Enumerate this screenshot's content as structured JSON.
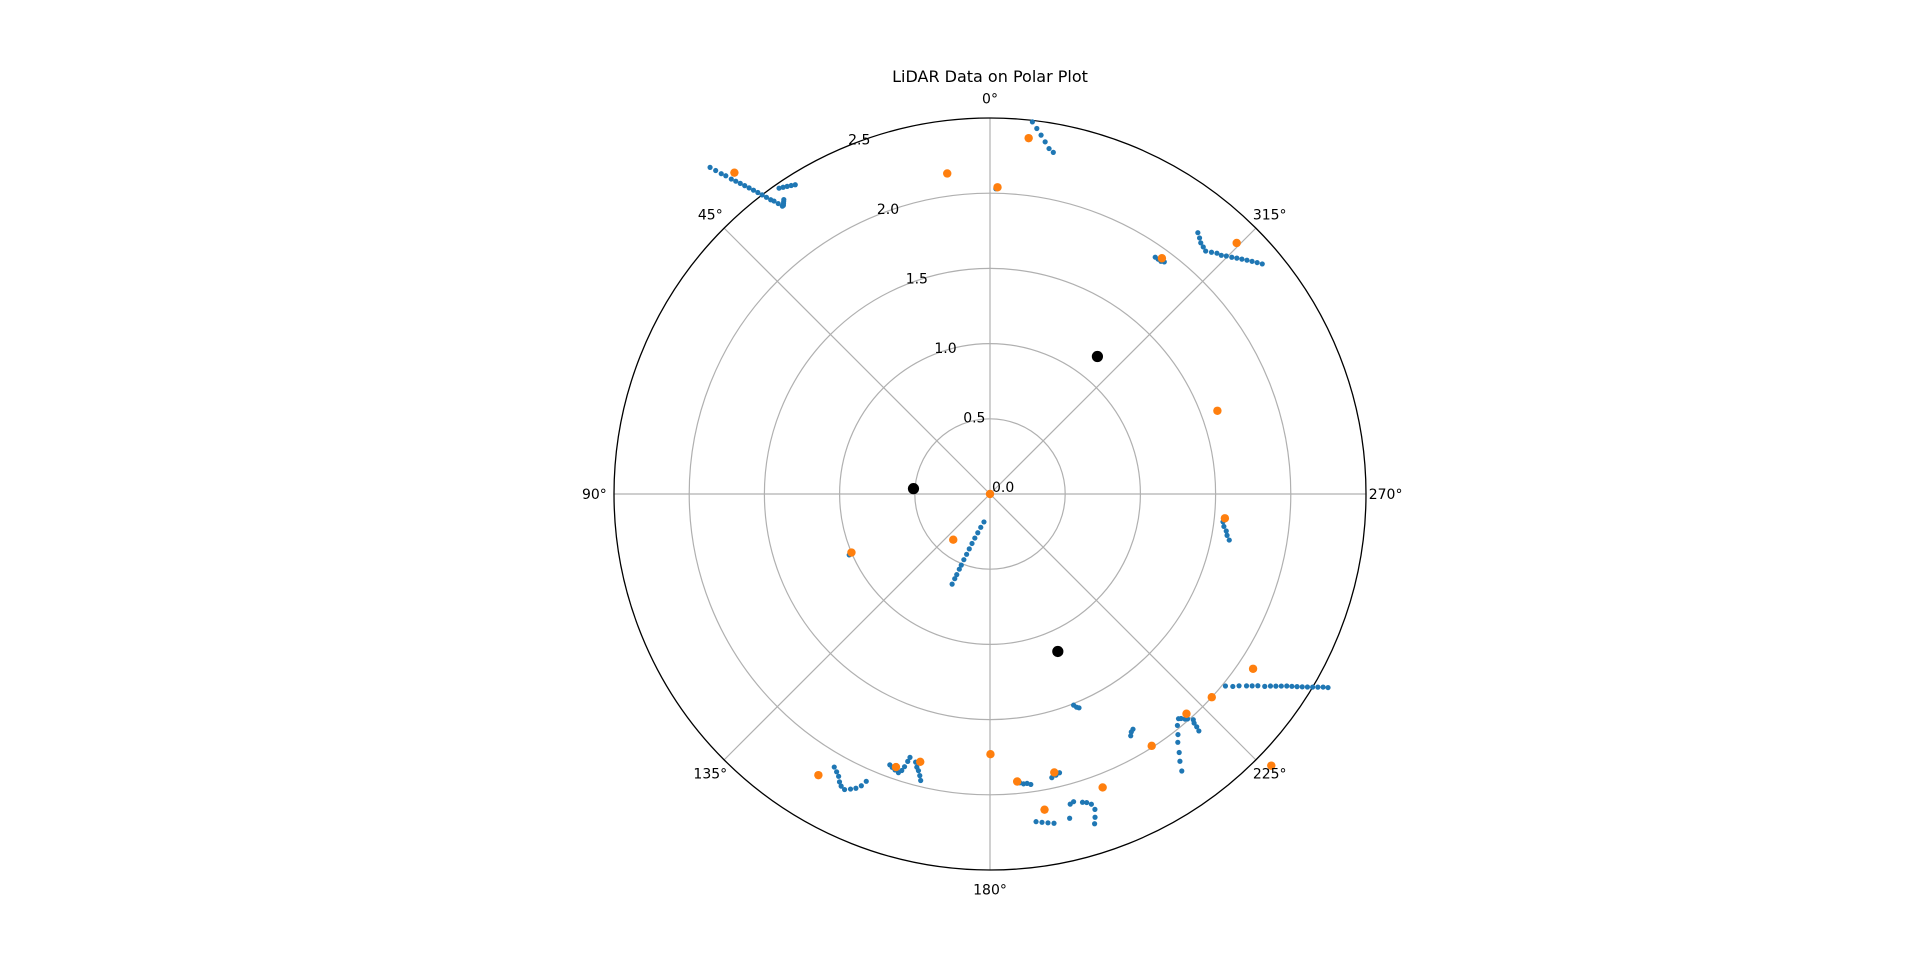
{
  "chart_data": {
    "type": "scatter",
    "projection": "polar",
    "title": "LiDAR Data on Polar Plot",
    "theta_zero_location": "top",
    "theta_direction": "counterclockwise",
    "angle_ticks": [
      0,
      45,
      90,
      135,
      180,
      225,
      270,
      315
    ],
    "angle_tick_labels": [
      "0°",
      "45°",
      "90°",
      "135°",
      "180°",
      "225°",
      "270°",
      "315°"
    ],
    "radial_ticks": [
      0.0,
      0.5,
      1.0,
      1.5,
      2.0,
      2.5
    ],
    "radial_tick_labels": [
      "0.0",
      "0.5",
      "1.0",
      "1.5",
      "2.0",
      "2.5"
    ],
    "rlim": [
      0,
      2.5
    ],
    "grid": true,
    "colors": {
      "blue": "#1f77b4",
      "orange": "#ff7f0e",
      "black": "#000000",
      "grid": "#b0b0b0"
    },
    "series": [
      {
        "color": "#1f77b4",
        "marker_size": "small",
        "points": [
          {
            "theta": 353.5,
            "r": 2.49
          },
          {
            "theta": 352.7,
            "r": 2.45
          },
          {
            "theta": 351.9,
            "r": 2.41
          },
          {
            "theta": 351.1,
            "r": 2.37
          },
          {
            "theta": 350.3,
            "r": 2.33
          },
          {
            "theta": 349.5,
            "r": 2.31
          },
          {
            "theta": 358.9,
            "r": 2.03
          },
          {
            "theta": 325.1,
            "r": 1.92
          },
          {
            "theta": 324.4,
            "r": 1.92
          },
          {
            "theta": 323.7,
            "r": 1.92
          },
          {
            "theta": 323.1,
            "r": 1.93
          },
          {
            "theta": 321.5,
            "r": 2.22
          },
          {
            "theta": 320.7,
            "r": 2.2
          },
          {
            "theta": 320.0,
            "r": 2.18
          },
          {
            "theta": 319.2,
            "r": 2.17
          },
          {
            "theta": 318.4,
            "r": 2.16
          },
          {
            "theta": 317.5,
            "r": 2.18
          },
          {
            "theta": 316.7,
            "r": 2.2
          },
          {
            "theta": 315.9,
            "r": 2.21
          },
          {
            "theta": 315.2,
            "r": 2.23
          },
          {
            "theta": 314.4,
            "r": 2.25
          },
          {
            "theta": 313.7,
            "r": 2.27
          },
          {
            "theta": 313.0,
            "r": 2.29
          },
          {
            "theta": 312.3,
            "r": 2.31
          },
          {
            "theta": 311.6,
            "r": 2.33
          },
          {
            "theta": 310.9,
            "r": 2.35
          },
          {
            "theta": 310.2,
            "r": 2.37
          },
          {
            "theta": 263.2,
            "r": 1.56
          },
          {
            "theta": 262.1,
            "r": 1.57
          },
          {
            "theta": 261.1,
            "r": 1.59
          },
          {
            "theta": 260.1,
            "r": 1.6
          },
          {
            "theta": 259.1,
            "r": 1.62
          },
          {
            "theta": 40.6,
            "r": 2.86
          },
          {
            "theta": 40.3,
            "r": 2.82
          },
          {
            "theta": 40.0,
            "r": 2.78
          },
          {
            "theta": 39.7,
            "r": 2.75
          },
          {
            "theta": 39.4,
            "r": 2.71
          },
          {
            "theta": 39.1,
            "r": 2.68
          },
          {
            "theta": 38.8,
            "r": 2.65
          },
          {
            "theta": 38.5,
            "r": 2.62
          },
          {
            "theta": 38.2,
            "r": 2.59
          },
          {
            "theta": 37.9,
            "r": 2.56
          },
          {
            "theta": 37.6,
            "r": 2.53
          },
          {
            "theta": 37.3,
            "r": 2.5
          },
          {
            "theta": 37.0,
            "r": 2.47
          },
          {
            "theta": 36.7,
            "r": 2.44
          },
          {
            "theta": 36.4,
            "r": 2.42
          },
          {
            "theta": 36.1,
            "r": 2.39
          },
          {
            "theta": 35.8,
            "r": 2.36
          },
          {
            "theta": 35.6,
            "r": 2.36
          },
          {
            "theta": 35.4,
            "r": 2.37
          },
          {
            "theta": 35.2,
            "r": 2.38
          },
          {
            "theta": 35.0,
            "r": 2.39
          },
          {
            "theta": 34.6,
            "r": 2.47
          },
          {
            "theta": 34.0,
            "r": 2.46
          },
          {
            "theta": 33.4,
            "r": 2.45
          },
          {
            "theta": 32.8,
            "r": 2.44
          },
          {
            "theta": 32.2,
            "r": 2.43
          },
          {
            "theta": 113.4,
            "r": 1.02
          },
          {
            "theta": 113.2,
            "r": 1.0
          },
          {
            "theta": 167.8,
            "r": 0.19
          },
          {
            "theta": 164.5,
            "r": 0.23
          },
          {
            "theta": 162.5,
            "r": 0.27
          },
          {
            "theta": 161.0,
            "r": 0.31
          },
          {
            "theta": 160.0,
            "r": 0.35
          },
          {
            "theta": 159.3,
            "r": 0.39
          },
          {
            "theta": 158.8,
            "r": 0.43
          },
          {
            "theta": 158.3,
            "r": 0.47
          },
          {
            "theta": 158.0,
            "r": 0.51
          },
          {
            "theta": 157.8,
            "r": 0.54
          },
          {
            "theta": 157.6,
            "r": 0.58
          },
          {
            "theta": 157.4,
            "r": 0.61
          },
          {
            "theta": 157.2,
            "r": 0.65
          },
          {
            "theta": 150.3,
            "r": 2.09
          },
          {
            "theta": 151.1,
            "r": 2.11
          },
          {
            "theta": 151.8,
            "r": 2.13
          },
          {
            "theta": 152.4,
            "r": 2.16
          },
          {
            "theta": 153.0,
            "r": 2.18
          },
          {
            "theta": 153.8,
            "r": 2.19
          },
          {
            "theta": 154.7,
            "r": 2.17
          },
          {
            "theta": 155.5,
            "r": 2.15
          },
          {
            "theta": 156.2,
            "r": 2.12
          },
          {
            "theta": 156.7,
            "r": 2.08
          },
          {
            "theta": 159.7,
            "r": 1.92
          },
          {
            "theta": 160.3,
            "r": 1.93
          },
          {
            "theta": 161.0,
            "r": 1.94
          },
          {
            "theta": 161.8,
            "r": 1.95
          },
          {
            "theta": 162.3,
            "r": 1.93
          },
          {
            "theta": 162.6,
            "r": 1.9
          },
          {
            "theta": 162.9,
            "r": 1.86
          },
          {
            "theta": 163.1,
            "r": 1.83
          },
          {
            "theta": 164.5,
            "r": 1.85
          },
          {
            "theta": 165.0,
            "r": 1.88
          },
          {
            "theta": 165.5,
            "r": 1.9
          },
          {
            "theta": 166.0,
            "r": 1.93
          },
          {
            "theta": 166.4,
            "r": 1.96
          },
          {
            "theta": 185.9,
            "r": 1.93
          },
          {
            "theta": 186.6,
            "r": 1.94
          },
          {
            "theta": 187.3,
            "r": 1.94
          },
          {
            "theta": 188.0,
            "r": 1.95
          },
          {
            "theta": 192.3,
            "r": 1.93
          },
          {
            "theta": 193.2,
            "r": 1.92
          },
          {
            "theta": 194.0,
            "r": 1.91
          },
          {
            "theta": 188.0,
            "r": 2.2
          },
          {
            "theta": 189.0,
            "r": 2.21
          },
          {
            "theta": 190.0,
            "r": 2.22
          },
          {
            "theta": 191.0,
            "r": 2.23
          },
          {
            "theta": 193.8,
            "r": 2.22
          },
          {
            "theta": 194.5,
            "r": 2.13
          },
          {
            "theta": 195.2,
            "r": 2.12
          },
          {
            "theta": 196.7,
            "r": 2.14
          },
          {
            "theta": 197.4,
            "r": 2.15
          },
          {
            "theta": 198.1,
            "r": 2.17
          },
          {
            "theta": 198.4,
            "r": 2.21
          },
          {
            "theta": 198.0,
            "r": 2.26
          },
          {
            "theta": 197.6,
            "r": 2.3
          },
          {
            "theta": 201.6,
            "r": 1.51
          },
          {
            "theta": 202.1,
            "r": 1.53
          },
          {
            "theta": 202.6,
            "r": 1.54
          },
          {
            "theta": 211.3,
            "r": 1.83
          },
          {
            "theta": 210.7,
            "r": 1.84
          },
          {
            "theta": 210.2,
            "r": 1.86
          },
          {
            "theta": 214.7,
            "r": 2.24
          },
          {
            "theta": 215.4,
            "r": 2.18
          },
          {
            "theta": 216.2,
            "r": 2.13
          },
          {
            "theta": 217.1,
            "r": 2.07
          },
          {
            "theta": 218.0,
            "r": 2.03
          },
          {
            "theta": 219.0,
            "r": 1.98
          },
          {
            "theta": 220.0,
            "r": 1.95
          },
          {
            "theta": 220.4,
            "r": 1.96
          },
          {
            "theta": 220.9,
            "r": 1.98
          },
          {
            "theta": 221.3,
            "r": 1.99
          },
          {
            "theta": 222.0,
            "r": 2.02
          },
          {
            "theta": 221.7,
            "r": 2.04
          },
          {
            "theta": 221.6,
            "r": 2.07
          },
          {
            "theta": 221.4,
            "r": 2.1
          },
          {
            "theta": 230.8,
            "r": 2.02
          },
          {
            "theta": 231.6,
            "r": 2.06
          },
          {
            "theta": 232.4,
            "r": 2.09
          },
          {
            "theta": 233.2,
            "r": 2.13
          },
          {
            "theta": 233.8,
            "r": 2.16
          },
          {
            "theta": 234.4,
            "r": 2.19
          },
          {
            "theta": 235.0,
            "r": 2.23
          },
          {
            "theta": 235.6,
            "r": 2.26
          },
          {
            "theta": 236.1,
            "r": 2.29
          },
          {
            "theta": 236.6,
            "r": 2.32
          },
          {
            "theta": 237.1,
            "r": 2.35
          },
          {
            "theta": 237.5,
            "r": 2.38
          },
          {
            "theta": 237.9,
            "r": 2.41
          },
          {
            "theta": 238.3,
            "r": 2.44
          },
          {
            "theta": 238.7,
            "r": 2.47
          },
          {
            "theta": 239.1,
            "r": 2.5
          },
          {
            "theta": 239.5,
            "r": 2.53
          },
          {
            "theta": 239.9,
            "r": 2.56
          },
          {
            "theta": 240.2,
            "r": 2.59
          }
        ]
      },
      {
        "color": "#ff7f0e",
        "marker_size": "medium",
        "points": [
          {
            "theta": 353.8,
            "r": 2.38
          },
          {
            "theta": 358.6,
            "r": 2.04
          },
          {
            "theta": 7.6,
            "r": 2.15
          },
          {
            "theta": 38.5,
            "r": 2.73
          },
          {
            "theta": 323.9,
            "r": 1.94
          },
          {
            "theta": 315.5,
            "r": 2.34
          },
          {
            "theta": 290.1,
            "r": 1.61
          },
          {
            "theta": 264.1,
            "r": 1.57
          },
          {
            "theta": 112.9,
            "r": 1.0
          },
          {
            "theta": 141.2,
            "r": 0.39
          },
          {
            "theta": 148.6,
            "r": 2.19
          },
          {
            "theta": 161.0,
            "r": 1.92
          },
          {
            "theta": 165.4,
            "r": 1.84
          },
          {
            "theta": 180.1,
            "r": 1.73
          },
          {
            "theta": 185.4,
            "r": 1.92
          },
          {
            "theta": 189.8,
            "r": 2.13
          },
          {
            "theta": 193.0,
            "r": 1.9
          },
          {
            "theta": 201.0,
            "r": 2.09
          },
          {
            "theta": 212.7,
            "r": 1.99
          },
          {
            "theta": 221.8,
            "r": 1.96
          },
          {
            "theta": 227.5,
            "r": 2.0
          },
          {
            "theta": 236.4,
            "r": 2.1
          },
          {
            "theta": 226.0,
            "r": 2.6
          },
          {
            "theta": 0.0,
            "r": 0.0
          }
        ]
      },
      {
        "color": "#000000",
        "marker_size": "large",
        "points": [
          {
            "theta": 322.0,
            "r": 1.16
          },
          {
            "theta": 86.0,
            "r": 0.51
          },
          {
            "theta": 203.3,
            "r": 1.14
          }
        ]
      }
    ]
  }
}
